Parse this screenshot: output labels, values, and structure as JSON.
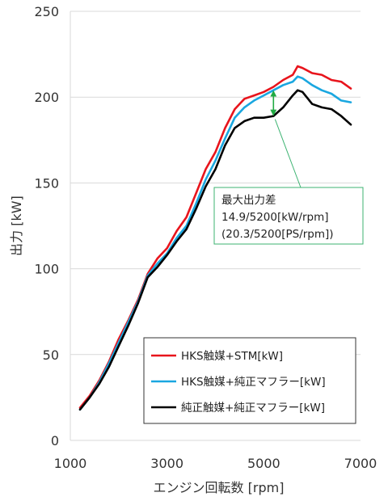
{
  "chart_data": {
    "type": "line",
    "xlabel": "エンジン回転数 [rpm]",
    "ylabel": "出力 [kW]",
    "xlim": [
      1000,
      7000
    ],
    "ylim": [
      0,
      250
    ],
    "xticks": [
      1000,
      3000,
      5000,
      7000
    ],
    "yticks": [
      0,
      50,
      100,
      150,
      200,
      250
    ],
    "grid": "horizontal",
    "legend_placement": "bottom-right",
    "series": [
      {
        "name": "HKS触媒+STM[kW]",
        "color": "#e8141c",
        "points": [
          [
            1200,
            19
          ],
          [
            1400,
            26
          ],
          [
            1600,
            35
          ],
          [
            1800,
            46
          ],
          [
            2000,
            59
          ],
          [
            2200,
            70
          ],
          [
            2400,
            82
          ],
          [
            2600,
            97
          ],
          [
            2800,
            106
          ],
          [
            3000,
            112
          ],
          [
            3200,
            122
          ],
          [
            3400,
            130
          ],
          [
            3600,
            144
          ],
          [
            3800,
            158
          ],
          [
            4000,
            168
          ],
          [
            4200,
            182
          ],
          [
            4400,
            193
          ],
          [
            4600,
            199
          ],
          [
            4800,
            201
          ],
          [
            5000,
            203
          ],
          [
            5200,
            206
          ],
          [
            5400,
            210
          ],
          [
            5600,
            213
          ],
          [
            5700,
            218
          ],
          [
            5800,
            217
          ],
          [
            6000,
            214
          ],
          [
            6200,
            213
          ],
          [
            6400,
            210
          ],
          [
            6600,
            209
          ],
          [
            6800,
            205
          ]
        ]
      },
      {
        "name": "HKS触媒+純正マフラー[kW]",
        "color": "#1aa7e0",
        "points": [
          [
            1200,
            18
          ],
          [
            1400,
            25
          ],
          [
            1600,
            34
          ],
          [
            1800,
            45
          ],
          [
            2000,
            57
          ],
          [
            2200,
            69
          ],
          [
            2400,
            81
          ],
          [
            2600,
            96
          ],
          [
            2800,
            103
          ],
          [
            3000,
            109
          ],
          [
            3200,
            118
          ],
          [
            3400,
            125
          ],
          [
            3600,
            138
          ],
          [
            3800,
            152
          ],
          [
            4000,
            163
          ],
          [
            4200,
            176
          ],
          [
            4400,
            188
          ],
          [
            4600,
            194
          ],
          [
            4800,
            198
          ],
          [
            5000,
            201
          ],
          [
            5200,
            204
          ],
          [
            5400,
            207
          ],
          [
            5600,
            209
          ],
          [
            5700,
            212
          ],
          [
            5800,
            211
          ],
          [
            6000,
            207
          ],
          [
            6200,
            204
          ],
          [
            6400,
            202
          ],
          [
            6600,
            198
          ],
          [
            6800,
            197
          ]
        ]
      },
      {
        "name": "純正触媒+純正マフラー[kW]",
        "color": "#000000",
        "points": [
          [
            1200,
            18
          ],
          [
            1400,
            25
          ],
          [
            1600,
            33
          ],
          [
            1800,
            43
          ],
          [
            2000,
            55
          ],
          [
            2200,
            67
          ],
          [
            2400,
            80
          ],
          [
            2600,
            95
          ],
          [
            2800,
            101
          ],
          [
            3000,
            108
          ],
          [
            3200,
            116
          ],
          [
            3400,
            123
          ],
          [
            3600,
            135
          ],
          [
            3800,
            148
          ],
          [
            4000,
            158
          ],
          [
            4200,
            172
          ],
          [
            4400,
            182
          ],
          [
            4600,
            186
          ],
          [
            4800,
            188
          ],
          [
            5000,
            188
          ],
          [
            5200,
            189
          ],
          [
            5400,
            194
          ],
          [
            5600,
            201
          ],
          [
            5700,
            204
          ],
          [
            5800,
            203
          ],
          [
            6000,
            196
          ],
          [
            6200,
            194
          ],
          [
            6400,
            193
          ],
          [
            6600,
            189
          ],
          [
            6800,
            184
          ]
        ]
      }
    ],
    "annotation": {
      "lines": [
        "最大出力差",
        "14.9/5200[kW/rpm]",
        "(20.3/5200[PS/rpm])"
      ],
      "x": 5200,
      "y_top": 204,
      "y_bottom": 189,
      "arrow_color": "#22aa44",
      "box_border_color": "#3cb371"
    }
  }
}
